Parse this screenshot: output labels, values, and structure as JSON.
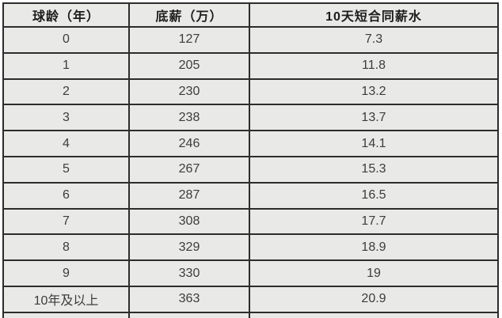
{
  "colors": {
    "page_bg": "#ffffff",
    "cell_bg": "#e9e9e7",
    "border": "#2d2d2d",
    "header_text": "#1c1c1c",
    "body_text": "#3c3c3c"
  },
  "chart_data": {
    "type": "table",
    "columns": [
      "球龄（年）",
      "底薪（万）",
      "10天短合同薪水"
    ],
    "rows": [
      [
        "0",
        "127",
        "7.3"
      ],
      [
        "1",
        "205",
        "11.8"
      ],
      [
        "2",
        "230",
        "13.2"
      ],
      [
        "3",
        "238",
        "13.7"
      ],
      [
        "4",
        "246",
        "14.1"
      ],
      [
        "5",
        "267",
        "15.3"
      ],
      [
        "6",
        "287",
        "16.5"
      ],
      [
        "7",
        "308",
        "17.7"
      ],
      [
        "8",
        "329",
        "18.9"
      ],
      [
        "9",
        "330",
        "19"
      ],
      [
        "10年及以上",
        "363",
        "20.9"
      ]
    ]
  }
}
